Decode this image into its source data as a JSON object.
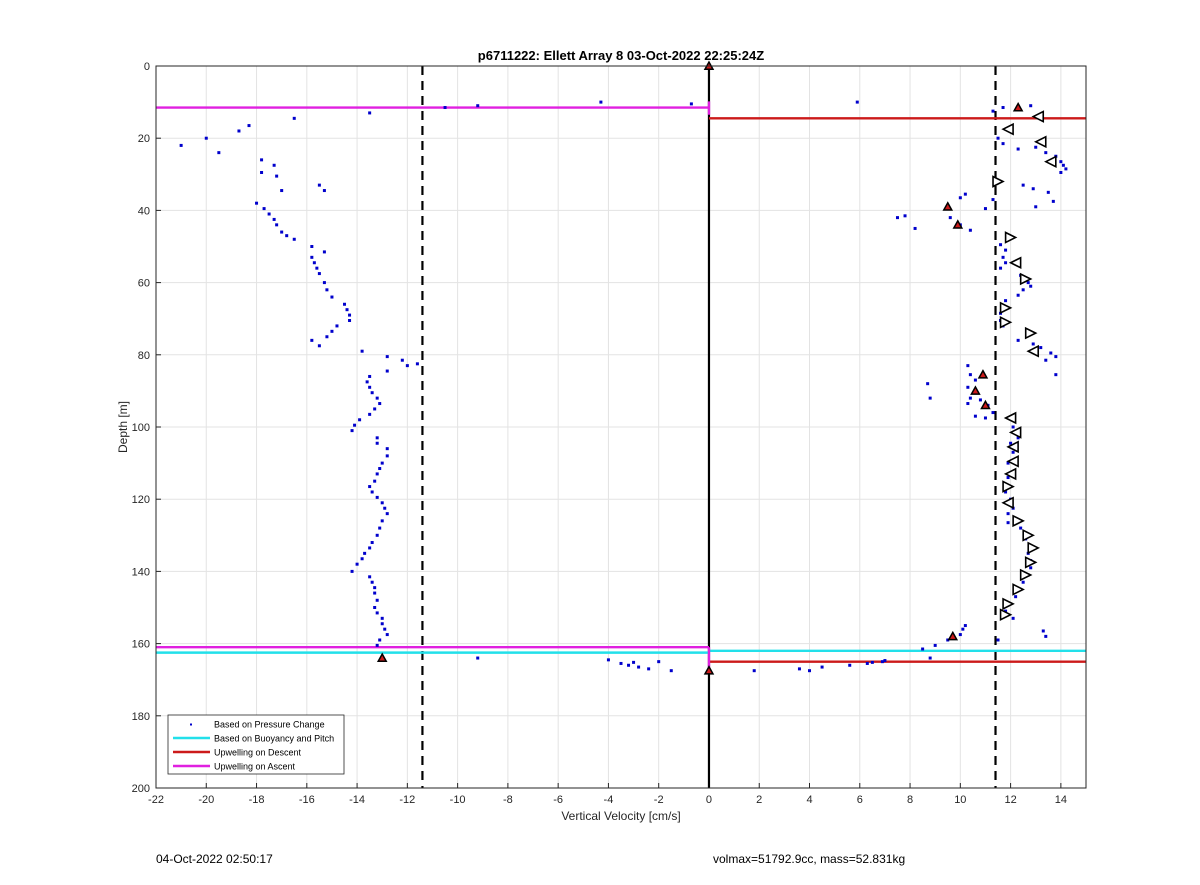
{
  "footer": {
    "left": "04-Oct-2022 02:50:17",
    "right": "volmax=51792.9cc, mass=52.831kg"
  },
  "chart_data": {
    "type": "scatter",
    "title": "p6711222: Ellett Array 8 03-Oct-2022 22:25:24Z",
    "xlabel": "Vertical Velocity [cm/s]",
    "ylabel": "Depth [m]",
    "xlim": [
      -22,
      15
    ],
    "ylim": [
      0,
      200
    ],
    "y_reversed": true,
    "grid": true,
    "xticks": [
      "-22",
      "-20",
      "-18",
      "-16",
      "-14",
      "-12",
      "-10",
      "-8",
      "-6",
      "-4",
      "-2",
      "0",
      "2",
      "4",
      "6",
      "8",
      "10",
      "12",
      "14"
    ],
    "yticks": [
      "0",
      "20",
      "40",
      "60",
      "80",
      "100",
      "120",
      "140",
      "160",
      "180",
      "200"
    ],
    "legend_position": "bottom-left",
    "legend": [
      {
        "label": "Based on Pressure Change",
        "style": "dots",
        "color": "#0000cc"
      },
      {
        "label": "Based on Buoyancy and Pitch",
        "style": "line",
        "color": "#22e0ea"
      },
      {
        "label": "Upwelling on Descent",
        "style": "line",
        "color": "#cc1a1a"
      },
      {
        "label": "Upwelling on Ascent",
        "style": "line",
        "color": "#e020e0"
      }
    ],
    "reference_lines": {
      "vertical_dashed_x": [
        -11.4,
        11.4
      ],
      "vertical_solid_x": 0,
      "upwelling_ascent_depths": [
        11.5,
        161
      ],
      "upwelling_descent_depths": [
        14.5,
        165
      ],
      "buoyancy_pitch_depths": [
        162.5,
        162
      ]
    },
    "series": [
      {
        "name": "Based on Pressure Change",
        "points": [
          [
            -21,
            22
          ],
          [
            -20,
            20
          ],
          [
            -19.5,
            24
          ],
          [
            -18.7,
            18
          ],
          [
            -18.3,
            16.5
          ],
          [
            -16.5,
            14.5
          ],
          [
            -13.5,
            13
          ],
          [
            -10.5,
            11.5
          ],
          [
            -9.2,
            11
          ],
          [
            -4.3,
            10
          ],
          [
            -0.7,
            10.5
          ],
          [
            5.9,
            10
          ],
          [
            -17.8,
            26
          ],
          [
            -17.8,
            29.5
          ],
          [
            -17.3,
            27.5
          ],
          [
            -17.2,
            30.5
          ],
          [
            -17,
            34.5
          ],
          [
            -15.5,
            33
          ],
          [
            -15.3,
            34.5
          ],
          [
            -18,
            38
          ],
          [
            -17.7,
            39.5
          ],
          [
            -17.5,
            41
          ],
          [
            -17.3,
            42.5
          ],
          [
            -17.2,
            44
          ],
          [
            -17,
            46
          ],
          [
            -16.8,
            47
          ],
          [
            -16.5,
            48
          ],
          [
            -15.8,
            50
          ],
          [
            -15.3,
            51.5
          ],
          [
            -15.8,
            53
          ],
          [
            -15.7,
            54.5
          ],
          [
            -15.6,
            56
          ],
          [
            -15.5,
            57.5
          ],
          [
            -15.3,
            60
          ],
          [
            -15.2,
            62
          ],
          [
            -15,
            64
          ],
          [
            -14.5,
            66
          ],
          [
            -14.4,
            67.5
          ],
          [
            -14.3,
            69
          ],
          [
            -14.3,
            70.5
          ],
          [
            -14.8,
            72
          ],
          [
            -15,
            73.5
          ],
          [
            -15.2,
            75
          ],
          [
            -15.8,
            76
          ],
          [
            -15.5,
            77.5
          ],
          [
            -13.8,
            79
          ],
          [
            -12.8,
            80.5
          ],
          [
            -12.2,
            81.5
          ],
          [
            -11.6,
            82.5
          ],
          [
            -12,
            83
          ],
          [
            -12.8,
            84.5
          ],
          [
            -13.5,
            86
          ],
          [
            -13.6,
            87.5
          ],
          [
            -13.5,
            89
          ],
          [
            -13.4,
            90.5
          ],
          [
            -13.2,
            92
          ],
          [
            -13.1,
            93.5
          ],
          [
            -13.3,
            95
          ],
          [
            -13.5,
            96.5
          ],
          [
            -13.9,
            98
          ],
          [
            -14.1,
            99.5
          ],
          [
            -14.2,
            101
          ],
          [
            -13.2,
            103
          ],
          [
            -13.2,
            104.5
          ],
          [
            -12.8,
            106
          ],
          [
            -12.8,
            108
          ],
          [
            -13,
            110
          ],
          [
            -13.1,
            111.5
          ],
          [
            -13.2,
            113
          ],
          [
            -13.3,
            115
          ],
          [
            -13.5,
            116.5
          ],
          [
            -13.4,
            118
          ],
          [
            -13.2,
            119.5
          ],
          [
            -13,
            121
          ],
          [
            -12.9,
            122.5
          ],
          [
            -12.8,
            124
          ],
          [
            -13,
            126
          ],
          [
            -13.1,
            128
          ],
          [
            -13.2,
            130
          ],
          [
            -13.4,
            132
          ],
          [
            -13.5,
            133.5
          ],
          [
            -13.7,
            135
          ],
          [
            -13.8,
            136.5
          ],
          [
            -14,
            138
          ],
          [
            -14.2,
            140
          ],
          [
            -13.5,
            141.5
          ],
          [
            -13.4,
            143
          ],
          [
            -13.3,
            144.5
          ],
          [
            -13.3,
            146
          ],
          [
            -13.2,
            148
          ],
          [
            -13.3,
            150
          ],
          [
            -13.2,
            151.5
          ],
          [
            -13,
            153
          ],
          [
            -13,
            154.5
          ],
          [
            -12.9,
            156
          ],
          [
            -12.8,
            157.5
          ],
          [
            -13.1,
            159
          ],
          [
            -13.2,
            160.5
          ],
          [
            -9.2,
            164
          ],
          [
            -4,
            164.5
          ],
          [
            -3.5,
            165.5
          ],
          [
            -3.2,
            166
          ],
          [
            -3,
            165.2
          ],
          [
            -2.8,
            166.5
          ],
          [
            -2.4,
            167
          ],
          [
            -2,
            165
          ],
          [
            -1.5,
            167.5
          ],
          [
            1.8,
            167.5
          ],
          [
            3.6,
            167
          ],
          [
            4,
            167.5
          ],
          [
            4.5,
            166.5
          ],
          [
            5.6,
            166
          ],
          [
            6.3,
            165.5
          ],
          [
            6.9,
            165
          ],
          [
            6.5,
            165.2
          ],
          [
            7,
            164.7
          ],
          [
            8.8,
            164
          ],
          [
            8.5,
            161.5
          ],
          [
            9,
            160.5
          ],
          [
            9.5,
            159
          ],
          [
            10,
            157.5
          ],
          [
            10.1,
            156
          ],
          [
            10.2,
            155
          ],
          [
            11.5,
            159
          ],
          [
            11.3,
            12.5
          ],
          [
            11.7,
            11.5
          ],
          [
            12.8,
            11
          ],
          [
            11.5,
            20
          ],
          [
            11.7,
            21.5
          ],
          [
            12.3,
            23
          ],
          [
            13,
            22.5
          ],
          [
            13.4,
            24
          ],
          [
            13.8,
            25
          ],
          [
            14,
            26.5
          ],
          [
            14.1,
            27.5
          ],
          [
            14.2,
            28.5
          ],
          [
            14,
            29.5
          ],
          [
            12.5,
            33
          ],
          [
            12.9,
            34
          ],
          [
            13.5,
            35
          ],
          [
            13.7,
            37.5
          ],
          [
            13,
            39
          ],
          [
            11.3,
            37
          ],
          [
            11,
            39.5
          ],
          [
            10.2,
            35.5
          ],
          [
            10,
            36.5
          ],
          [
            7.5,
            42
          ],
          [
            7.8,
            41.5
          ],
          [
            8.2,
            45
          ],
          [
            9.6,
            42
          ],
          [
            10,
            44
          ],
          [
            10.4,
            45.5
          ],
          [
            11.6,
            49.5
          ],
          [
            11.8,
            51
          ],
          [
            11.7,
            53
          ],
          [
            11.8,
            54.5
          ],
          [
            11.6,
            56
          ],
          [
            12.4,
            58
          ],
          [
            12.7,
            60
          ],
          [
            12.8,
            61
          ],
          [
            12.5,
            62
          ],
          [
            12.3,
            63.5
          ],
          [
            11.8,
            65
          ],
          [
            11.7,
            67
          ],
          [
            11.6,
            68.5
          ],
          [
            11.6,
            70.5
          ],
          [
            11.7,
            72
          ],
          [
            12.3,
            76
          ],
          [
            12.9,
            77
          ],
          [
            13.2,
            78
          ],
          [
            13.6,
            79.5
          ],
          [
            13.8,
            80.5
          ],
          [
            13.4,
            81.5
          ],
          [
            13.8,
            85.5
          ],
          [
            8.7,
            88
          ],
          [
            8.8,
            92
          ],
          [
            10.3,
            83
          ],
          [
            10.4,
            85.5
          ],
          [
            10.6,
            87
          ],
          [
            10.3,
            89
          ],
          [
            10.4,
            92
          ],
          [
            10.3,
            93.5
          ],
          [
            10.8,
            92.5
          ],
          [
            11.1,
            94
          ],
          [
            11.3,
            96
          ],
          [
            11,
            97.5
          ],
          [
            10.6,
            97
          ],
          [
            12.1,
            100
          ],
          [
            12.3,
            103
          ],
          [
            12,
            104.5
          ],
          [
            12.1,
            107
          ],
          [
            11.9,
            110
          ],
          [
            11.9,
            114
          ],
          [
            11.8,
            118
          ],
          [
            12,
            120
          ],
          [
            12.1,
            122.5
          ],
          [
            11.9,
            124
          ],
          [
            11.9,
            126.5
          ],
          [
            12.4,
            128
          ],
          [
            12.6,
            131
          ],
          [
            12.7,
            135
          ],
          [
            12.8,
            137
          ],
          [
            12.8,
            139
          ],
          [
            12.7,
            141
          ],
          [
            12.5,
            143
          ],
          [
            12.4,
            145
          ],
          [
            12.2,
            147
          ],
          [
            11.9,
            149
          ],
          [
            11.8,
            151
          ],
          [
            12.1,
            153
          ],
          [
            13.3,
            156.5
          ],
          [
            13.4,
            158
          ]
        ]
      },
      {
        "name": "",
        "marker": "red-triangle",
        "points": [
          [
            0,
            0
          ],
          [
            12.3,
            11.5
          ],
          [
            9.5,
            39
          ],
          [
            9.9,
            44
          ],
          [
            10.9,
            85.5
          ],
          [
            10.6,
            90
          ],
          [
            11,
            94
          ],
          [
            9.7,
            158
          ],
          [
            -13,
            164
          ],
          [
            0,
            167.5
          ]
        ]
      },
      {
        "name": "",
        "marker": "open-triangle",
        "points": [
          [
            13.1,
            14,
            "left"
          ],
          [
            11.9,
            17.5,
            "left"
          ],
          [
            13.2,
            21,
            "left"
          ],
          [
            13.6,
            26.5,
            "left"
          ],
          [
            11.5,
            32,
            "right"
          ],
          [
            12,
            47.5,
            "right"
          ],
          [
            12.2,
            54.5,
            "left"
          ],
          [
            12.6,
            59,
            "right"
          ],
          [
            11.8,
            67,
            "right"
          ],
          [
            11.8,
            71,
            "right"
          ],
          [
            12.8,
            74,
            "right"
          ],
          [
            12.9,
            79,
            "left"
          ],
          [
            12,
            97.5,
            "left"
          ],
          [
            12.2,
            101.5,
            "left"
          ],
          [
            12.1,
            105.5,
            "left"
          ],
          [
            12.1,
            109.5,
            "left"
          ],
          [
            12,
            113,
            "left"
          ],
          [
            11.9,
            116.5,
            "right"
          ],
          [
            11.9,
            121,
            "left"
          ],
          [
            12.3,
            126,
            "right"
          ],
          [
            12.7,
            130,
            "right"
          ],
          [
            12.9,
            133.5,
            "right"
          ],
          [
            12.8,
            137.5,
            "right"
          ],
          [
            12.6,
            141,
            "right"
          ],
          [
            12.3,
            145,
            "right"
          ],
          [
            11.9,
            149,
            "right"
          ],
          [
            11.8,
            152,
            "right"
          ]
        ]
      }
    ]
  }
}
